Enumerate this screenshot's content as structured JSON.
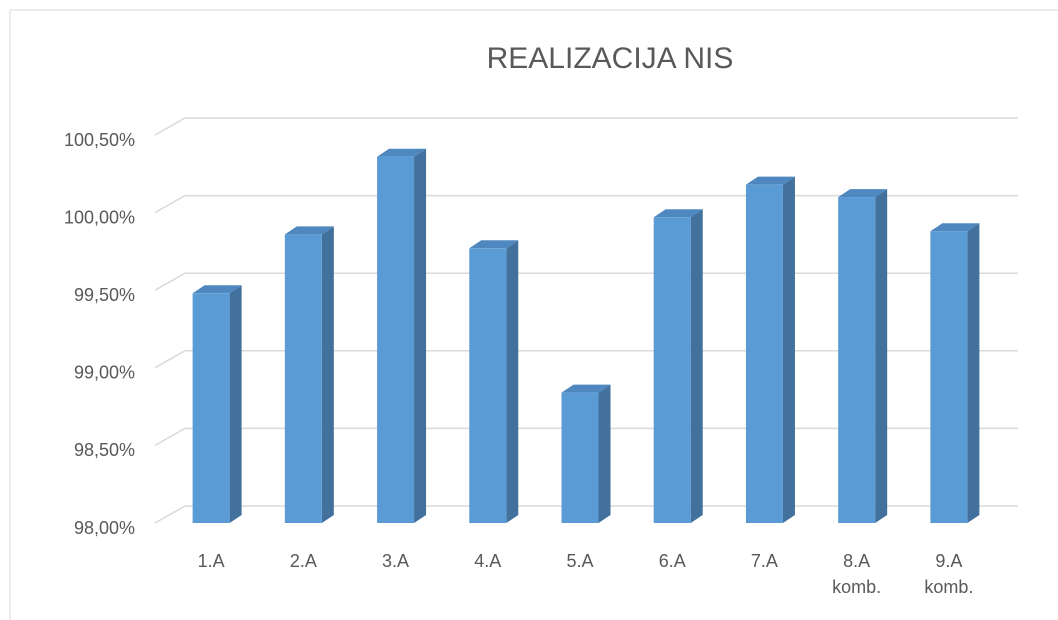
{
  "chart_data": {
    "type": "bar3d",
    "title": "REALIZACIJA NIS",
    "categories": [
      "1.A",
      "2.A",
      "3.A",
      "4.A",
      "5.A",
      "6.A",
      "7.A",
      "8.A komb.",
      "9.A komb."
    ],
    "values": [
      99.48,
      99.86,
      100.36,
      99.77,
      98.84,
      99.97,
      100.18,
      100.1,
      99.88
    ],
    "color": "#5b9bd5",
    "side_color": "#41719c",
    "top_color": "#4f88bf",
    "ylim": [
      98,
      100.5
    ],
    "yticks": [
      {
        "value": 98,
        "label": "98,00%"
      },
      {
        "value": 98.5,
        "label": "98,50%"
      },
      {
        "value": 99,
        "label": "99,00%"
      },
      {
        "value": 99.5,
        "label": "99,50%"
      },
      {
        "value": 100,
        "label": "100,00%"
      },
      {
        "value": 100.5,
        "label": "100,50%"
      }
    ],
    "grid": true
  }
}
